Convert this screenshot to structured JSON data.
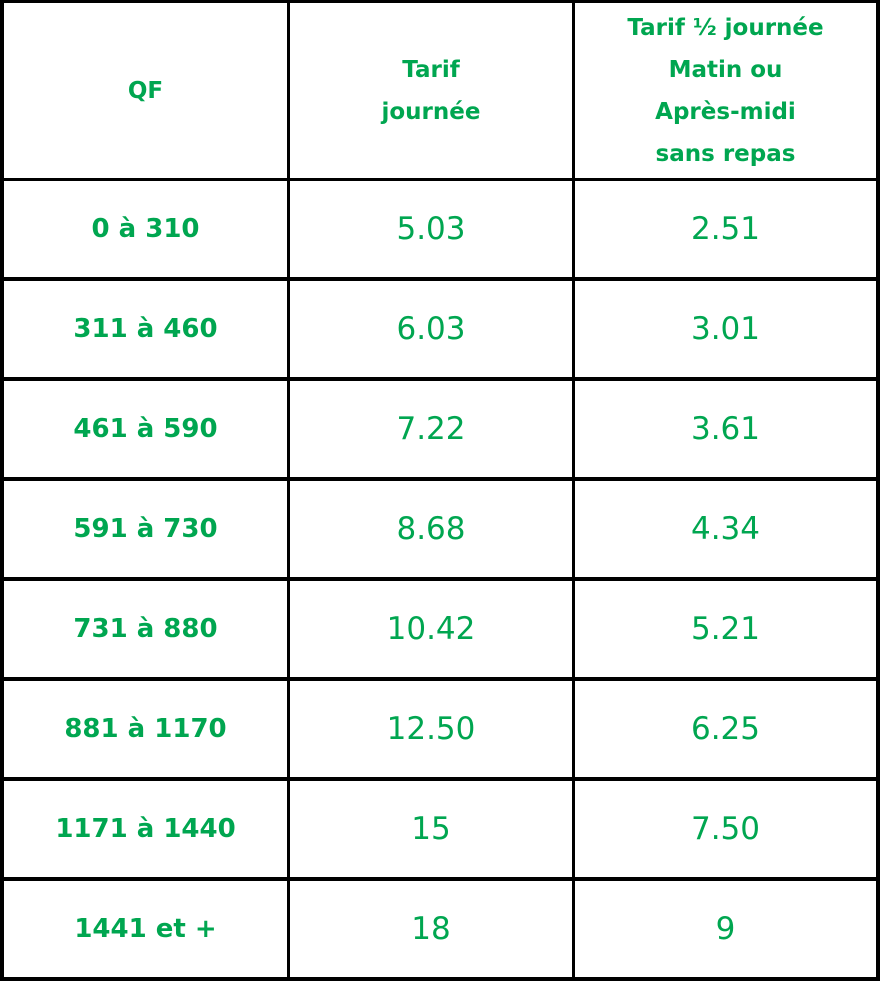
{
  "table": {
    "header": [
      [
        "QF"
      ],
      [
        "Tarif",
        "journée"
      ],
      [
        "Tarif ½ journée",
        "Matin ou",
        "Après-midi",
        "sans repas"
      ]
    ],
    "rows": [
      [
        "0 à 310",
        "5.03",
        "2.51"
      ],
      [
        "311 à 460",
        "6.03",
        "3.01"
      ],
      [
        "461 à 590",
        "7.22",
        "3.61"
      ],
      [
        "591 à 730",
        "8.68",
        "4.34"
      ],
      [
        "731 à 880",
        "10.42",
        "5.21"
      ],
      [
        "881 à 1170",
        "12.50",
        "6.25"
      ],
      [
        "1171 à 1440",
        "15",
        "7.50"
      ],
      [
        "1441 et +",
        "18",
        "9"
      ]
    ]
  }
}
